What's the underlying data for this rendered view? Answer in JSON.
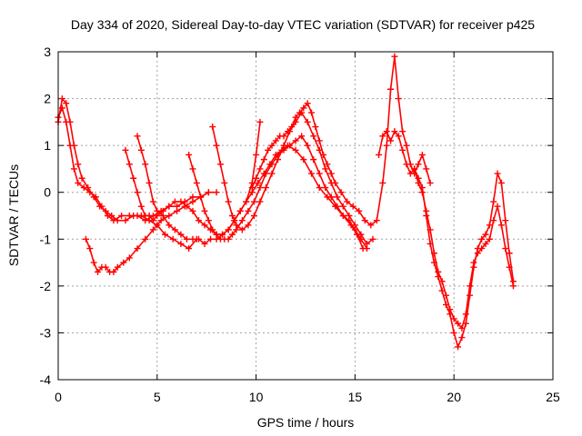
{
  "chart_data": {
    "type": "scatter",
    "title": "Day 334 of 2020, Sidereal Day-to-day VTEC variation (SDTVAR) for receiver p425",
    "xlabel": "GPS time / hours",
    "ylabel": "SDTVAR / TECUs",
    "xlim": [
      0,
      25
    ],
    "ylim": [
      -4,
      3
    ],
    "xticks": [
      "0",
      "5",
      "10",
      "15",
      "20",
      "25"
    ],
    "yticks": [
      "-4",
      "-3",
      "-2",
      "-1",
      "0",
      "1",
      "2",
      "3"
    ],
    "grid": true,
    "legend": "none",
    "marker": "+",
    "color": "#ff0000",
    "series": [
      {
        "name": "track-1",
        "x": [
          0.0,
          0.2,
          0.4,
          0.6,
          0.8,
          1.0,
          1.3,
          1.6,
          1.9,
          2.2,
          2.5,
          2.8,
          3.2,
          3.6,
          4.0,
          4.4,
          4.8,
          5.2,
          5.6,
          6.0,
          6.4,
          6.8,
          7.2,
          7.6,
          8.0
        ],
        "y": [
          1.6,
          1.8,
          1.5,
          1.0,
          0.5,
          0.2,
          0.1,
          0.0,
          -0.1,
          -0.3,
          -0.5,
          -0.6,
          -0.5,
          -0.5,
          -0.5,
          -0.6,
          -0.5,
          -0.4,
          -0.3,
          -0.3,
          -0.2,
          -0.1,
          -0.1,
          0.0,
          0.0
        ]
      },
      {
        "name": "track-2",
        "x": [
          0.0,
          0.2,
          0.4,
          0.6,
          0.8,
          1.0,
          1.2,
          1.5,
          1.8,
          2.1,
          2.4,
          2.7,
          3.0,
          3.4,
          3.8,
          4.2,
          4.6,
          5.0,
          5.4,
          5.8,
          6.2,
          6.6,
          7.0
        ],
        "y": [
          1.5,
          2.0,
          1.9,
          1.5,
          1.0,
          0.6,
          0.3,
          0.1,
          -0.1,
          -0.3,
          -0.4,
          -0.5,
          -0.6,
          -0.6,
          -0.5,
          -0.5,
          -0.6,
          -0.7,
          -0.9,
          -1.0,
          -1.1,
          -1.2,
          -1.0
        ]
      },
      {
        "name": "track-3",
        "x": [
          1.4,
          1.6,
          1.8,
          2.0,
          2.2,
          2.4,
          2.6,
          2.8,
          3.0,
          3.3,
          3.6,
          4.0,
          4.4,
          4.8,
          5.2,
          5.6,
          6.0,
          6.4,
          6.8,
          7.2,
          7.6
        ],
        "y": [
          -1.0,
          -1.2,
          -1.5,
          -1.7,
          -1.6,
          -1.6,
          -1.7,
          -1.7,
          -1.6,
          -1.5,
          -1.4,
          -1.2,
          -1.0,
          -0.8,
          -0.6,
          -0.5,
          -0.4,
          -0.3,
          -0.2,
          -0.1,
          0.0
        ]
      },
      {
        "name": "track-4",
        "x": [
          3.4,
          3.6,
          3.8,
          4.0,
          4.2,
          4.4,
          4.6,
          4.8,
          5.0,
          5.3,
          5.6,
          5.9,
          6.2,
          6.5,
          6.8,
          7.1,
          7.4,
          7.7,
          8.0,
          8.3,
          8.6,
          8.9,
          9.2,
          9.5,
          9.8,
          10.0,
          10.2
        ],
        "y": [
          0.9,
          0.6,
          0.3,
          0.0,
          -0.3,
          -0.5,
          -0.5,
          -0.6,
          -0.5,
          -0.4,
          -0.3,
          -0.2,
          -0.2,
          -0.3,
          -0.4,
          -0.6,
          -0.7,
          -0.8,
          -0.9,
          -0.9,
          -0.8,
          -0.6,
          -0.4,
          -0.2,
          0.2,
          0.8,
          1.5
        ]
      },
      {
        "name": "track-5",
        "x": [
          4.0,
          4.2,
          4.4,
          4.6,
          4.8,
          5.0,
          5.3,
          5.6,
          5.9,
          6.2,
          6.5,
          6.8,
          7.1,
          7.4,
          7.7,
          8.0,
          8.3,
          8.6,
          8.9,
          9.2,
          9.5,
          9.8,
          10.1,
          10.4,
          10.7,
          11.0,
          11.3,
          11.6,
          12.0,
          12.4,
          12.8,
          13.2,
          13.6,
          14.0,
          14.4,
          14.8,
          15.1,
          15.4
        ],
        "y": [
          1.2,
          0.9,
          0.6,
          0.2,
          -0.2,
          -0.4,
          -0.5,
          -0.7,
          -0.8,
          -0.9,
          -1.0,
          -1.0,
          -1.0,
          -1.1,
          -1.0,
          -1.0,
          -0.9,
          -0.8,
          -0.6,
          -0.4,
          -0.2,
          0.0,
          0.2,
          0.4,
          0.6,
          0.8,
          0.9,
          1.0,
          0.9,
          0.7,
          0.4,
          0.1,
          -0.1,
          -0.3,
          -0.5,
          -0.7,
          -0.9,
          -1.2
        ]
      },
      {
        "name": "track-6",
        "x": [
          6.6,
          6.8,
          7.0,
          7.2,
          7.4,
          7.6,
          7.8,
          8.0,
          8.2,
          8.4,
          8.6,
          8.8,
          9.0,
          9.3,
          9.6,
          9.9,
          10.2,
          10.5,
          10.8,
          11.1,
          11.4,
          11.7,
          12.0,
          12.3,
          12.6,
          12.9,
          13.2,
          13.5,
          13.8,
          14.1,
          14.4,
          14.7,
          15.0,
          15.3,
          15.6
        ],
        "y": [
          0.8,
          0.5,
          0.2,
          -0.1,
          -0.4,
          -0.6,
          -0.8,
          -0.9,
          -1.0,
          -1.0,
          -1.0,
          -0.9,
          -0.8,
          -0.6,
          -0.4,
          -0.2,
          0.1,
          0.4,
          0.6,
          0.8,
          0.9,
          1.0,
          1.1,
          1.2,
          1.0,
          0.7,
          0.4,
          0.1,
          -0.1,
          -0.3,
          -0.5,
          -0.6,
          -0.8,
          -1.0,
          -1.2
        ]
      },
      {
        "name": "track-7",
        "x": [
          7.8,
          8.0,
          8.2,
          8.4,
          8.6,
          8.8,
          9.0,
          9.3,
          9.6,
          9.9,
          10.2,
          10.5,
          10.8,
          11.1,
          11.4,
          11.7,
          12.0,
          12.3,
          12.6,
          12.9,
          13.2,
          13.5,
          13.8,
          14.1,
          14.4,
          14.7,
          15.0,
          15.3,
          15.6,
          15.9
        ],
        "y": [
          1.4,
          1.0,
          0.6,
          0.2,
          -0.2,
          -0.5,
          -0.7,
          -0.8,
          -0.7,
          -0.5,
          -0.2,
          0.1,
          0.4,
          0.7,
          1.0,
          1.3,
          1.5,
          1.7,
          1.5,
          1.2,
          0.9,
          0.5,
          0.2,
          -0.1,
          -0.3,
          -0.5,
          -0.7,
          -0.9,
          -1.1,
          -1.0
        ]
      },
      {
        "name": "track-8",
        "x": [
          9.8,
          10.0,
          10.2,
          10.4,
          10.6,
          10.8,
          11.0,
          11.2,
          11.4,
          11.6,
          11.8,
          12.0,
          12.2,
          12.4,
          12.6,
          12.8,
          13.0,
          13.2,
          13.4,
          13.6,
          13.8,
          14.0,
          14.3,
          14.6,
          14.9,
          15.2,
          15.5,
          15.8,
          16.1,
          16.4,
          16.6,
          16.8,
          17.0,
          17.2,
          17.4,
          17.6,
          17.8,
          18.0,
          18.2,
          18.4,
          18.6,
          18.8
        ],
        "y": [
          0.1,
          0.3,
          0.5,
          0.7,
          0.9,
          1.0,
          1.1,
          1.2,
          1.2,
          1.3,
          1.4,
          1.6,
          1.7,
          1.8,
          1.9,
          1.7,
          1.4,
          1.1,
          0.8,
          0.6,
          0.4,
          0.2,
          0.0,
          -0.2,
          -0.3,
          -0.4,
          -0.6,
          -0.7,
          -0.6,
          0.2,
          1.0,
          2.2,
          2.9,
          2.0,
          1.3,
          1.0,
          0.6,
          0.4,
          0.6,
          0.8,
          0.5,
          0.2
        ]
      },
      {
        "name": "track-9",
        "x": [
          16.2,
          16.4,
          16.6,
          16.8,
          17.0,
          17.2,
          17.4,
          17.6,
          17.8,
          18.0,
          18.2,
          18.4,
          18.6,
          18.8,
          19.0,
          19.2,
          19.4,
          19.6,
          19.8,
          20.0,
          20.2,
          20.4,
          20.6,
          20.8,
          21.0,
          21.2,
          21.4,
          21.6,
          21.8,
          22.0,
          22.2,
          22.4,
          22.6,
          22.8,
          23.0
        ],
        "y": [
          0.8,
          1.2,
          1.3,
          1.1,
          1.3,
          1.2,
          0.9,
          0.6,
          0.4,
          0.5,
          0.3,
          0.1,
          -0.5,
          -1.1,
          -1.5,
          -1.8,
          -2.1,
          -2.4,
          -2.6,
          -3.0,
          -3.3,
          -3.1,
          -2.8,
          -2.2,
          -1.6,
          -1.2,
          -1.0,
          -0.9,
          -0.7,
          -0.2,
          0.4,
          0.2,
          -0.6,
          -1.3,
          -1.9
        ]
      },
      {
        "name": "track-10",
        "x": [
          18.0,
          18.2,
          18.4,
          18.6,
          18.8,
          19.0,
          19.2,
          19.4,
          19.6,
          19.8,
          20.0,
          20.2,
          20.4,
          20.6,
          20.8,
          21.0,
          21.2,
          21.4,
          21.6,
          21.8,
          22.0,
          22.2,
          22.4,
          22.6,
          22.8,
          23.0
        ],
        "y": [
          0.5,
          0.2,
          0.0,
          -0.4,
          -0.8,
          -1.3,
          -1.7,
          -1.9,
          -2.2,
          -2.5,
          -2.7,
          -2.8,
          -2.9,
          -2.6,
          -2.0,
          -1.5,
          -1.3,
          -1.2,
          -1.1,
          -1.0,
          -0.6,
          -0.3,
          -0.7,
          -1.2,
          -1.6,
          -2.0
        ]
      }
    ]
  }
}
